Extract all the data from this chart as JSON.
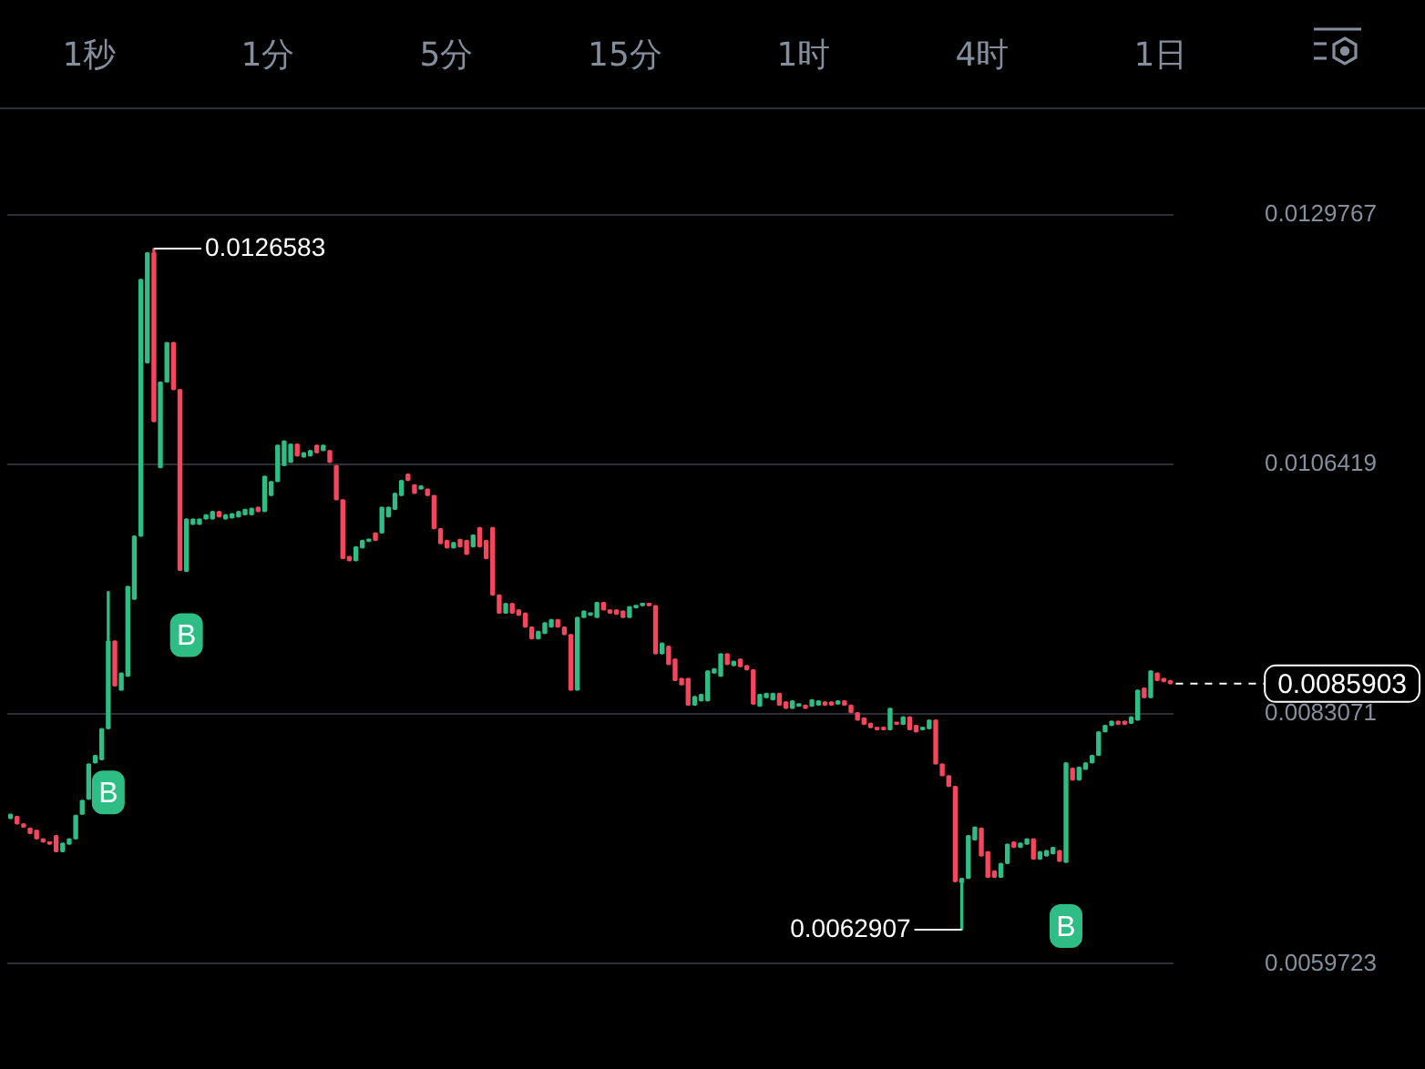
{
  "chart_data": {
    "type": "candlestick",
    "categories": [
      null,
      null,
      null,
      null,
      null,
      null,
      null,
      null,
      null,
      null,
      null,
      null,
      null,
      null,
      null,
      null,
      null,
      null,
      null,
      null,
      null,
      null,
      null,
      null,
      null,
      null,
      null,
      null,
      null,
      null,
      null,
      null,
      null,
      null,
      null,
      null,
      null,
      null,
      null,
      null,
      null,
      null,
      null,
      null,
      null,
      null,
      null,
      null,
      null,
      null,
      null,
      null,
      null,
      null,
      null,
      null,
      null,
      null,
      null,
      null,
      null,
      null,
      null,
      null,
      null,
      null,
      null,
      null,
      null,
      null,
      null,
      null,
      null,
      null,
      null,
      null,
      null,
      null,
      null,
      null,
      null,
      null,
      null,
      null,
      null,
      null,
      null,
      null,
      null,
      null,
      null,
      null,
      null,
      null,
      null,
      null,
      null,
      null,
      null,
      null,
      null,
      null,
      null,
      null,
      null,
      null,
      null,
      null,
      null,
      null,
      null,
      null,
      null,
      null,
      null,
      null,
      null,
      null,
      null,
      null,
      null,
      null,
      null,
      null,
      null,
      null,
      null,
      null,
      null,
      null,
      null,
      null,
      null,
      null,
      null,
      null,
      null,
      null,
      null,
      null,
      null,
      null,
      null,
      null,
      null,
      null,
      null,
      null,
      null,
      null,
      null,
      null,
      null,
      null,
      null,
      null,
      null,
      null,
      null,
      null,
      null,
      null,
      null,
      null,
      null,
      null,
      null,
      null,
      null,
      null,
      null,
      null,
      null,
      null,
      null,
      null,
      null,
      null,
      null
    ],
    "ohlc": [
      [
        0.00733,
        0.00737,
        0.00733,
        0.00737
      ],
      [
        0.00735,
        0.00735,
        0.00728,
        0.00728
      ],
      [
        0.00728,
        0.00728,
        0.00725,
        0.00725
      ],
      [
        0.00724,
        0.00724,
        0.00719,
        0.00719
      ],
      [
        0.00722,
        0.00722,
        0.00714,
        0.00714
      ],
      [
        0.00714,
        0.00714,
        0.00711,
        0.00711
      ],
      [
        0.00711,
        0.00711,
        0.00709,
        0.00709
      ],
      [
        0.00717,
        0.00717,
        0.00702,
        0.00702
      ],
      [
        0.00702,
        0.0071,
        0.00702,
        0.0071
      ],
      [
        0.00709,
        0.00714,
        0.00709,
        0.00714
      ],
      [
        0.00714,
        0.00736,
        0.00714,
        0.00736
      ],
      [
        0.00737,
        0.0075,
        0.00737,
        0.0075
      ],
      [
        0.00751,
        0.00784,
        0.00751,
        0.00784
      ],
      [
        0.00785,
        0.00792,
        0.00785,
        0.00792
      ],
      [
        0.00788,
        0.00817,
        0.00788,
        0.00817
      ],
      [
        0.00817,
        0.00945,
        0.00817,
        0.00899
      ],
      [
        0.00899,
        0.00899,
        0.00857,
        0.00857
      ],
      [
        0.00853,
        0.00869,
        0.00853,
        0.00869
      ],
      [
        0.00866,
        0.0095,
        0.00866,
        0.0095
      ],
      [
        0.00938,
        0.00997,
        0.00938,
        0.00997
      ],
      [
        0.00997,
        0.01237,
        0.00997,
        0.01237
      ],
      [
        0.01159,
        0.01262,
        0.01159,
        0.01262
      ],
      [
        0.01262,
        0.0126583,
        0.01104,
        0.01104
      ],
      [
        0.01061,
        0.01141,
        0.01061,
        0.01141
      ],
      [
        0.01141,
        0.01178,
        0.01141,
        0.01178
      ],
      [
        0.01178,
        0.01178,
        0.01134,
        0.01134
      ],
      [
        0.01134,
        0.01134,
        0.00965,
        0.00965
      ],
      [
        0.00964,
        0.01013,
        0.00964,
        0.01013
      ],
      [
        0.01008,
        0.01013,
        0.01008,
        0.01013
      ],
      [
        0.01008,
        0.01013,
        0.01008,
        0.01013
      ],
      [
        0.01013,
        0.01017,
        0.01013,
        0.01017
      ],
      [
        0.01013,
        0.0102,
        0.01013,
        0.0102
      ],
      [
        0.0102,
        0.0102,
        0.01015,
        0.01015
      ],
      [
        0.01013,
        0.01017,
        0.01013,
        0.01017
      ],
      [
        0.01014,
        0.01018,
        0.01014,
        0.01018
      ],
      [
        0.01015,
        0.0102,
        0.01015,
        0.0102
      ],
      [
        0.01017,
        0.01022,
        0.01017,
        0.01022
      ],
      [
        0.01017,
        0.01023,
        0.01017,
        0.01023
      ],
      [
        0.01024,
        0.01024,
        0.0102,
        0.0102
      ],
      [
        0.0102,
        0.01053,
        0.0102,
        0.01053
      ],
      [
        0.01035,
        0.01048,
        0.01035,
        0.01048
      ],
      [
        0.01048,
        0.01082,
        0.01048,
        0.01082
      ],
      [
        0.01063,
        0.01086,
        0.01063,
        0.01086
      ],
      [
        0.01066,
        0.01083,
        0.01066,
        0.01083
      ],
      [
        0.01083,
        0.01083,
        0.01072,
        0.01072
      ],
      [
        0.01071,
        0.01075,
        0.01071,
        0.01075
      ],
      [
        0.01072,
        0.01077,
        0.01072,
        0.01077
      ],
      [
        0.01082,
        0.01082,
        0.01075,
        0.01075
      ],
      [
        0.01077,
        0.01082,
        0.01077,
        0.01082
      ],
      [
        0.01077,
        0.01077,
        0.01066,
        0.01066
      ],
      [
        0.01063,
        0.01063,
        0.01031,
        0.01031
      ],
      [
        0.01031,
        0.01031,
        0.00976,
        0.00976
      ],
      [
        0.00978,
        0.00978,
        0.00974,
        0.00974
      ],
      [
        0.00974,
        0.00987,
        0.00974,
        0.00987
      ],
      [
        0.00986,
        0.00993,
        0.00986,
        0.00993
      ],
      [
        0.00992,
        0.00994,
        0.00992,
        0.00994
      ],
      [
        0.01,
        0.01,
        0.00993,
        0.00993
      ],
      [
        0.01,
        0.01024,
        0.01,
        0.01024
      ],
      [
        0.01015,
        0.01024,
        0.01015,
        0.01024
      ],
      [
        0.01022,
        0.01037,
        0.01022,
        0.01037
      ],
      [
        0.01035,
        0.01049,
        0.01035,
        0.01049
      ],
      [
        0.01055,
        0.01055,
        0.01049,
        0.01049
      ],
      [
        0.01045,
        0.01045,
        0.01037,
        0.01037
      ],
      [
        0.01041,
        0.01044,
        0.01041,
        0.01044
      ],
      [
        0.01041,
        0.01041,
        0.01035,
        0.01035
      ],
      [
        0.01035,
        0.01035,
        0.01004,
        0.01004
      ],
      [
        0.01004,
        0.01004,
        0.0099,
        0.0099
      ],
      [
        0.00993,
        0.00993,
        0.00986,
        0.00986
      ],
      [
        0.00986,
        0.00991,
        0.00986,
        0.00991
      ],
      [
        0.00994,
        0.00994,
        0.00987,
        0.00987
      ],
      [
        0.00993,
        0.00993,
        0.0098,
        0.0098
      ],
      [
        0.00987,
        0.00998,
        0.00987,
        0.00998
      ],
      [
        0.01005,
        0.01005,
        0.00987,
        0.00987
      ],
      [
        0.00993,
        0.00993,
        0.00976,
        0.00976
      ],
      [
        0.01005,
        0.01005,
        0.00942,
        0.00942
      ],
      [
        0.00942,
        0.00942,
        0.00925,
        0.00925
      ],
      [
        0.00925,
        0.00934,
        0.00925,
        0.00934
      ],
      [
        0.00934,
        0.00934,
        0.00925,
        0.00925
      ],
      [
        0.00928,
        0.00928,
        0.00923,
        0.00923
      ],
      [
        0.00925,
        0.00925,
        0.00912,
        0.00912
      ],
      [
        0.00912,
        0.00912,
        0.00901,
        0.00901
      ],
      [
        0.00901,
        0.00908,
        0.00901,
        0.00908
      ],
      [
        0.00906,
        0.00916,
        0.00906,
        0.00916
      ],
      [
        0.00912,
        0.00919,
        0.00912,
        0.00919
      ],
      [
        0.00919,
        0.00919,
        0.00912,
        0.00912
      ],
      [
        0.00912,
        0.00912,
        0.00905,
        0.00905
      ],
      [
        0.00905,
        0.00905,
        0.00853,
        0.00853
      ],
      [
        0.00853,
        0.00921,
        0.00853,
        0.00921
      ],
      [
        0.00921,
        0.00927,
        0.00921,
        0.00927
      ],
      [
        0.00923,
        0.00925,
        0.00923,
        0.00925
      ],
      [
        0.00921,
        0.00935,
        0.00921,
        0.00935
      ],
      [
        0.00935,
        0.00935,
        0.00928,
        0.00928
      ],
      [
        0.00928,
        0.00928,
        0.00925,
        0.00925
      ],
      [
        0.00928,
        0.00928,
        0.00924,
        0.00924
      ],
      [
        0.00927,
        0.00927,
        0.00921,
        0.00921
      ],
      [
        0.00921,
        0.00931,
        0.00921,
        0.00931
      ],
      [
        0.0093,
        0.00932,
        0.0093,
        0.00932
      ],
      [
        0.00932,
        0.00934,
        0.00932,
        0.00934
      ],
      [
        0.00934,
        0.00934,
        0.00932,
        0.00932
      ],
      [
        0.00932,
        0.00932,
        0.00887,
        0.00887
      ],
      [
        0.00887,
        0.00897,
        0.00887,
        0.00897
      ],
      [
        0.00894,
        0.00894,
        0.00877,
        0.00877
      ],
      [
        0.00882,
        0.00882,
        0.00862,
        0.00862
      ],
      [
        0.00864,
        0.00864,
        0.00858,
        0.00858
      ],
      [
        0.00864,
        0.00864,
        0.00839,
        0.00839
      ],
      [
        0.00839,
        0.00847,
        0.00839,
        0.00847
      ],
      [
        0.00843,
        0.00849,
        0.00843,
        0.00849
      ],
      [
        0.00843,
        0.00871,
        0.00843,
        0.00871
      ],
      [
        0.00869,
        0.00873,
        0.00869,
        0.00873
      ],
      [
        0.00866,
        0.00887,
        0.00866,
        0.00887
      ],
      [
        0.00887,
        0.00887,
        0.00877,
        0.00877
      ],
      [
        0.00876,
        0.0088,
        0.00876,
        0.0088
      ],
      [
        0.00882,
        0.00882,
        0.00875,
        0.00875
      ],
      [
        0.00876,
        0.00876,
        0.00872,
        0.00872
      ],
      [
        0.00872,
        0.00872,
        0.0084,
        0.0084
      ],
      [
        0.00838,
        0.00849,
        0.00838,
        0.00849
      ],
      [
        0.00846,
        0.0085,
        0.00846,
        0.0085
      ],
      [
        0.00844,
        0.0085,
        0.00844,
        0.0085
      ],
      [
        0.0085,
        0.0085,
        0.00839,
        0.00839
      ],
      [
        0.00842,
        0.00842,
        0.00836,
        0.00836
      ],
      [
        0.00836,
        0.00843,
        0.00836,
        0.00843
      ],
      [
        0.00838,
        0.0084,
        0.00838,
        0.0084
      ],
      [
        0.00839,
        0.00839,
        0.00836,
        0.00836
      ],
      [
        0.00838,
        0.00844,
        0.00838,
        0.00844
      ],
      [
        0.00839,
        0.00843,
        0.00839,
        0.00843
      ],
      [
        0.00842,
        0.00842,
        0.00839,
        0.00839
      ],
      [
        0.00842,
        0.00842,
        0.00839,
        0.00839
      ],
      [
        0.0084,
        0.00843,
        0.0084,
        0.00843
      ],
      [
        0.00843,
        0.00843,
        0.00839,
        0.00839
      ],
      [
        0.00839,
        0.00839,
        0.00832,
        0.00832
      ],
      [
        0.00832,
        0.00832,
        0.00825,
        0.00825
      ],
      [
        0.00827,
        0.00827,
        0.00821,
        0.00821
      ],
      [
        0.00822,
        0.00822,
        0.00818,
        0.00818
      ],
      [
        0.00818,
        0.00818,
        0.00816,
        0.00816
      ],
      [
        0.00818,
        0.00818,
        0.00816,
        0.00816
      ],
      [
        0.00816,
        0.00836,
        0.00816,
        0.00836
      ],
      [
        0.00822,
        0.00822,
        0.00821,
        0.00821
      ],
      [
        0.00821,
        0.00828,
        0.00821,
        0.00828
      ],
      [
        0.00828,
        0.00828,
        0.00816,
        0.00816
      ],
      [
        0.0082,
        0.0082,
        0.00814,
        0.00814
      ],
      [
        0.00816,
        0.00818,
        0.00816,
        0.00818
      ],
      [
        0.00817,
        0.00825,
        0.00817,
        0.00825
      ],
      [
        0.00825,
        0.00825,
        0.00784,
        0.00784
      ],
      [
        0.00784,
        0.00784,
        0.00773,
        0.00773
      ],
      [
        0.00773,
        0.00773,
        0.00763,
        0.00763
      ],
      [
        0.00763,
        0.00763,
        0.00674,
        0.00674
      ],
      [
        0.00673,
        0.00677,
        0.0062907,
        0.00677
      ],
      [
        0.00677,
        0.00717,
        0.00677,
        0.00717
      ],
      [
        0.00713,
        0.00725,
        0.00713,
        0.00725
      ],
      [
        0.00724,
        0.00724,
        0.00698,
        0.00698
      ],
      [
        0.00702,
        0.00702,
        0.00678,
        0.00678
      ],
      [
        0.00684,
        0.00684,
        0.00678,
        0.00678
      ],
      [
        0.00678,
        0.00691,
        0.00678,
        0.00691
      ],
      [
        0.00691,
        0.00709,
        0.00691,
        0.00709
      ],
      [
        0.00711,
        0.00711,
        0.00706,
        0.00706
      ],
      [
        0.00706,
        0.0071,
        0.00706,
        0.0071
      ],
      [
        0.00709,
        0.00714,
        0.00709,
        0.00714
      ],
      [
        0.00714,
        0.00714,
        0.00695,
        0.00695
      ],
      [
        0.00695,
        0.00702,
        0.00695,
        0.00702
      ],
      [
        0.00698,
        0.00703,
        0.00698,
        0.00703
      ],
      [
        0.007,
        0.00706,
        0.007,
        0.00706
      ],
      [
        0.00703,
        0.00703,
        0.00693,
        0.00693
      ],
      [
        0.00692,
        0.00785,
        0.00692,
        0.00785
      ],
      [
        0.0078,
        0.0078,
        0.00769,
        0.00769
      ],
      [
        0.00769,
        0.00781,
        0.00769,
        0.00781
      ],
      [
        0.00779,
        0.00785,
        0.00779,
        0.00785
      ],
      [
        0.00785,
        0.00792,
        0.00785,
        0.00792
      ],
      [
        0.00792,
        0.00814,
        0.00792,
        0.00814
      ],
      [
        0.00814,
        0.0082,
        0.00814,
        0.0082
      ],
      [
        0.0082,
        0.00824,
        0.0082,
        0.00824
      ],
      [
        0.00824,
        0.00824,
        0.00821,
        0.00821
      ],
      [
        0.00824,
        0.00824,
        0.00821,
        0.00821
      ],
      [
        0.00822,
        0.00828,
        0.00822,
        0.00828
      ],
      [
        0.00825,
        0.00853,
        0.00825,
        0.00853
      ],
      [
        0.00855,
        0.00855,
        0.00846,
        0.00846
      ],
      [
        0.00846,
        0.00871,
        0.00846,
        0.00871
      ],
      [
        0.00869,
        0.00869,
        0.00862,
        0.00862
      ],
      [
        0.00864,
        0.00864,
        0.00861,
        0.00861
      ],
      [
        0.00862,
        0.00862,
        0.0085903,
        0.0085903
      ]
    ],
    "colors": [
      "#2ebd85",
      "#f6465d",
      "#f6465d",
      "#f6465d",
      "#f6465d",
      "#f6465d",
      "#f6465d",
      "#f6465d",
      "#2ebd85",
      "#2ebd85",
      "#2ebd85",
      "#2ebd85",
      "#2ebd85",
      "#2ebd85",
      "#2ebd85",
      "#2ebd85",
      "#f6465d",
      "#2ebd85",
      "#2ebd85",
      "#2ebd85",
      "#2ebd85",
      "#2ebd85",
      "#f6465d",
      "#2ebd85",
      "#2ebd85",
      "#f6465d",
      "#f6465d",
      "#2ebd85",
      "#2ebd85",
      "#2ebd85",
      "#2ebd85",
      "#2ebd85",
      "#f6465d",
      "#2ebd85",
      "#2ebd85",
      "#2ebd85",
      "#2ebd85",
      "#2ebd85",
      "#f6465d",
      "#2ebd85",
      "#2ebd85",
      "#2ebd85",
      "#2ebd85",
      "#2ebd85",
      "#f6465d",
      "#2ebd85",
      "#2ebd85",
      "#f6465d",
      "#2ebd85",
      "#f6465d",
      "#f6465d",
      "#f6465d",
      "#f6465d",
      "#2ebd85",
      "#2ebd85",
      "#2ebd85",
      "#f6465d",
      "#2ebd85",
      "#2ebd85",
      "#2ebd85",
      "#2ebd85",
      "#f6465d",
      "#f6465d",
      "#2ebd85",
      "#f6465d",
      "#f6465d",
      "#f6465d",
      "#f6465d",
      "#2ebd85",
      "#f6465d",
      "#f6465d",
      "#2ebd85",
      "#f6465d",
      "#f6465d",
      "#f6465d",
      "#f6465d",
      "#2ebd85",
      "#f6465d",
      "#f6465d",
      "#f6465d",
      "#f6465d",
      "#2ebd85",
      "#2ebd85",
      "#2ebd85",
      "#f6465d",
      "#f6465d",
      "#f6465d",
      "#2ebd85",
      "#2ebd85",
      "#2ebd85",
      "#2ebd85",
      "#f6465d",
      "#f6465d",
      "#f6465d",
      "#f6465d",
      "#2ebd85",
      "#2ebd85",
      "#2ebd85",
      "#f6465d",
      "#f6465d",
      "#2ebd85",
      "#f6465d",
      "#f6465d",
      "#f6465d",
      "#f6465d",
      "#2ebd85",
      "#2ebd85",
      "#2ebd85",
      "#2ebd85",
      "#2ebd85",
      "#f6465d",
      "#2ebd85",
      "#f6465d",
      "#f6465d",
      "#f6465d",
      "#2ebd85",
      "#2ebd85",
      "#2ebd85",
      "#f6465d",
      "#f6465d",
      "#2ebd85",
      "#2ebd85",
      "#f6465d",
      "#2ebd85",
      "#2ebd85",
      "#f6465d",
      "#f6465d",
      "#2ebd85",
      "#f6465d",
      "#f6465d",
      "#f6465d",
      "#f6465d",
      "#f6465d",
      "#f6465d",
      "#f6465d",
      "#2ebd85",
      "#f6465d",
      "#2ebd85",
      "#f6465d",
      "#f6465d",
      "#2ebd85",
      "#2ebd85",
      "#f6465d",
      "#f6465d",
      "#f6465d",
      "#f6465d",
      "#2ebd85",
      "#2ebd85",
      "#2ebd85",
      "#f6465d",
      "#f6465d",
      "#f6465d",
      "#2ebd85",
      "#2ebd85",
      "#f6465d",
      "#2ebd85",
      "#2ebd85",
      "#f6465d",
      "#2ebd85",
      "#2ebd85",
      "#2ebd85",
      "#f6465d",
      "#2ebd85",
      "#f6465d",
      "#2ebd85",
      "#2ebd85",
      "#2ebd85",
      "#2ebd85",
      "#2ebd85",
      "#2ebd85",
      "#f6465d",
      "#f6465d",
      "#2ebd85",
      "#2ebd85",
      "#f6465d",
      "#2ebd85",
      "#f6465d",
      "#f6465d",
      "#f6465d"
    ],
    "ylim": [
      0.0059723,
      0.0129767
    ],
    "yticks": [
      0.0129767,
      0.0106419,
      0.0083071,
      0.0059723
    ],
    "grid": "y",
    "legend": false,
    "ref_lines": [
      {
        "axis": "y",
        "value": 0.0085903,
        "label": "0.0085903",
        "color": "#ffffff",
        "line_style": "dashed"
      }
    ],
    "annotations": [
      "1秒",
      "1分",
      "5分",
      "15分",
      "1时",
      "4时",
      "1日",
      "0.0126583",
      "0.0062907",
      {
        "text": "B",
        "y": 0.00817
      },
      {
        "text": "B",
        "y": 0.00964
      },
      {
        "text": "B",
        "y": 0.00692
      }
    ]
  }
}
